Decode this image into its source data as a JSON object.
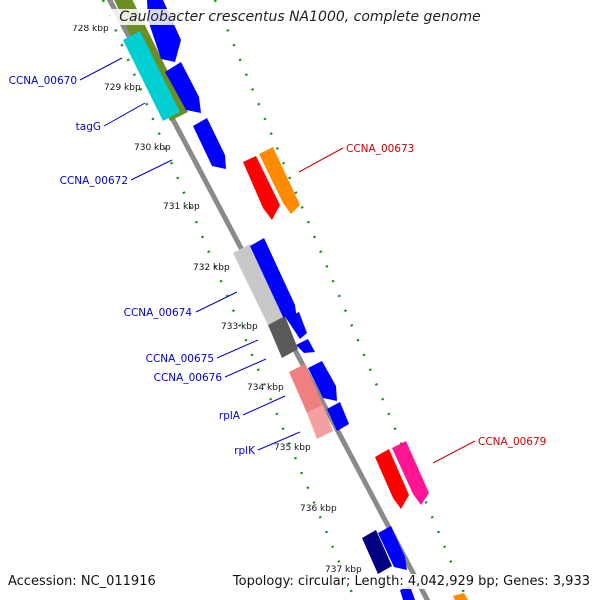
{
  "title": "Caulobacter crescentus NA1000, complete genome",
  "accession": "Accession: NC_011916",
  "summary": "Topology: circular; Length: 4,042,929 bp; Genes: 3,933",
  "colors": {
    "backbone": "#909090",
    "tick": "#228b22",
    "label_forward": "#0000cc",
    "label_reverse": "#cc0000",
    "gene_blue": "#0000ff",
    "gene_red": "#ff0000",
    "gene_orange": "#ff8c00",
    "gene_magenta": "#ff1493",
    "gene_cyan": "#00ced1",
    "gene_olive": "#6b8e23",
    "gene_lightgray": "#c8c8c8",
    "gene_darkgray": "#606060",
    "gene_pink": "#f08080",
    "gene_navy": "#000080"
  },
  "kbp_ticks": [
    "728 kbp",
    "729 kbp",
    "730 kbp",
    "731 kbp",
    "732 kbp",
    "733 kbp",
    "734 kbp",
    "735 kbp",
    "736 kbp",
    "737 kbp"
  ],
  "gene_labels": [
    {
      "name": "CCNA_00670",
      "strand": "forward"
    },
    {
      "name": "tagG",
      "strand": "forward"
    },
    {
      "name": "CCNA_00672",
      "strand": "forward"
    },
    {
      "name": "CCNA_00673",
      "strand": "reverse"
    },
    {
      "name": "CCNA_00674",
      "strand": "forward"
    },
    {
      "name": "CCNA_00675",
      "strand": "forward"
    },
    {
      "name": "CCNA_00676",
      "strand": "forward"
    },
    {
      "name": "rplA",
      "strand": "forward"
    },
    {
      "name": "rplK",
      "strand": "forward"
    },
    {
      "name": "CCNA_00679",
      "strand": "reverse"
    }
  ]
}
